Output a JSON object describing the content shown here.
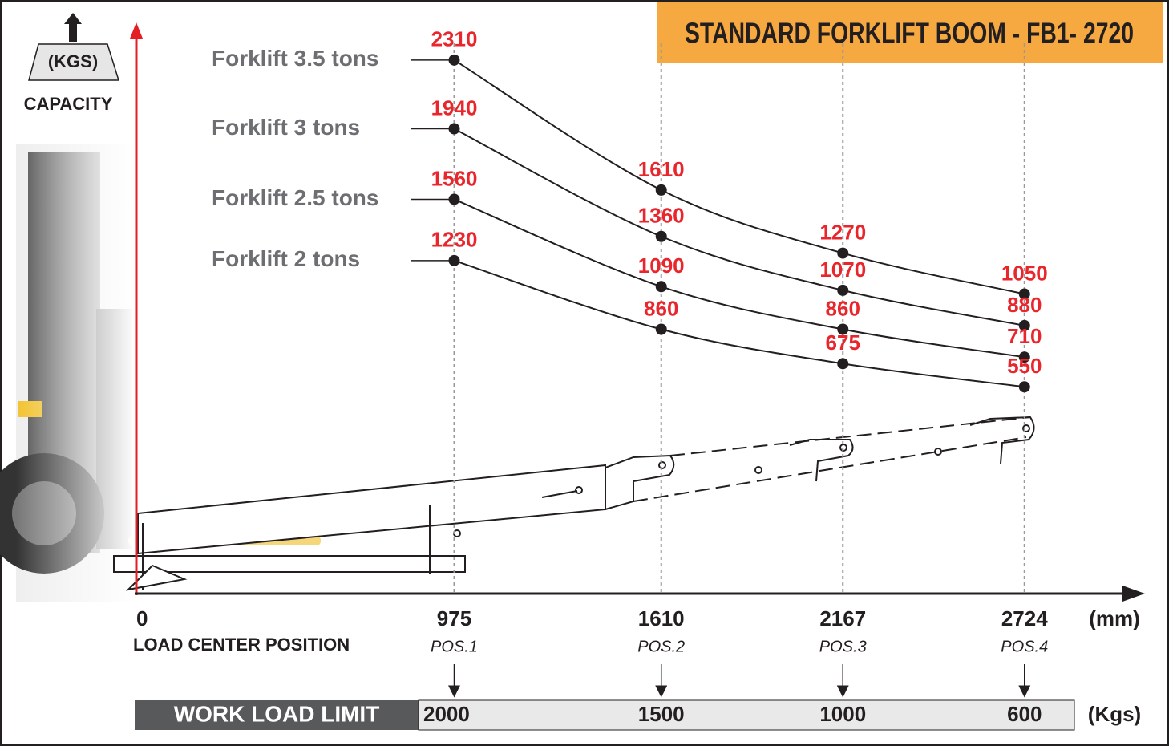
{
  "chart_data": {
    "type": "line",
    "title": "STANDARD FORKLIFT BOOM - FB1- 2720",
    "ylabel": "CAPACITY",
    "y_unit": "(KGS)",
    "xlabel": "LOAD CENTER POSITION",
    "x_unit": "(mm)",
    "x": [
      975,
      1610,
      2167,
      2724
    ],
    "positions": [
      "POS.1",
      "POS.2",
      "POS.3",
      "POS.4"
    ],
    "xlim": [
      0,
      3000
    ],
    "xticks": [
      0,
      975,
      1610,
      2167,
      2724
    ],
    "ylim": [
      400,
      2400
    ],
    "label_color": "#e8262c",
    "series": [
      {
        "name": "Forklift 3.5 tons",
        "color": "#231f20",
        "values": [
          2310,
          1610,
          1270,
          1050
        ]
      },
      {
        "name": "Forklift 3 tons",
        "color": "#231f20",
        "values": [
          1940,
          1360,
          1070,
          880
        ]
      },
      {
        "name": "Forklift 2.5 tons",
        "color": "#231f20",
        "values": [
          1560,
          1090,
          860,
          710
        ]
      },
      {
        "name": "Forklift 2 tons",
        "color": "#231f20",
        "values": [
          1230,
          860,
          675,
          550
        ]
      }
    ],
    "work_load_limit": {
      "label": "WORK LOAD LIMIT",
      "unit": "(Kgs)",
      "values": [
        2000,
        1500,
        1000,
        600
      ]
    }
  }
}
